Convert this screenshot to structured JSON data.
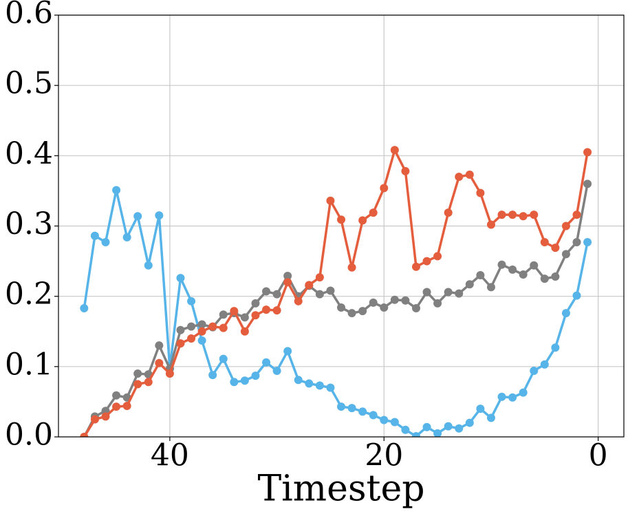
{
  "chart_data": {
    "type": "line",
    "x_label": "Timestep",
    "x": [
      48,
      47,
      46,
      45,
      44,
      43,
      42,
      41,
      40,
      39,
      38,
      37,
      36,
      35,
      34,
      33,
      32,
      31,
      30,
      29,
      28,
      27,
      26,
      25,
      24,
      23,
      22,
      21,
      20,
      19,
      18,
      17,
      16,
      15,
      14,
      13,
      12,
      11,
      10,
      9,
      8,
      7,
      6,
      5,
      4,
      3,
      2,
      1
    ],
    "series": [
      {
        "color": "#56b4e9",
        "values": [
          0.183,
          0.286,
          0.277,
          0.351,
          0.284,
          0.314,
          0.244,
          0.315,
          0.097,
          0.226,
          0.193,
          0.137,
          0.088,
          0.111,
          0.078,
          0.08,
          0.087,
          0.106,
          0.094,
          0.122,
          0.081,
          0.076,
          0.073,
          0.07,
          0.043,
          0.041,
          0.036,
          0.031,
          0.024,
          0.021,
          0.01,
          0.001,
          0.014,
          0.005,
          0.015,
          0.012,
          0.02,
          0.04,
          0.027,
          0.057,
          0.056,
          0.063,
          0.094,
          0.103,
          0.127,
          0.176,
          0.201,
          0.277
        ]
      },
      {
        "color": "#808080",
        "values": [
          0.0,
          0.029,
          0.037,
          0.059,
          0.056,
          0.09,
          0.089,
          0.13,
          0.097,
          0.152,
          0.157,
          0.16,
          0.156,
          0.174,
          0.176,
          0.17,
          0.19,
          0.207,
          0.203,
          0.229,
          0.2,
          0.215,
          0.203,
          0.208,
          0.184,
          0.176,
          0.179,
          0.191,
          0.184,
          0.195,
          0.194,
          0.183,
          0.206,
          0.19,
          0.206,
          0.204,
          0.217,
          0.23,
          0.213,
          0.245,
          0.238,
          0.231,
          0.244,
          0.225,
          0.228,
          0.26,
          0.277,
          0.36
        ]
      },
      {
        "color": "#e45d3d",
        "values": [
          0.0,
          0.025,
          0.029,
          0.043,
          0.044,
          0.075,
          0.078,
          0.105,
          0.09,
          0.133,
          0.14,
          0.15,
          0.157,
          0.155,
          0.179,
          0.15,
          0.173,
          0.181,
          0.18,
          0.22,
          0.193,
          0.216,
          0.227,
          0.336,
          0.309,
          0.241,
          0.308,
          0.319,
          0.354,
          0.408,
          0.378,
          0.242,
          0.25,
          0.257,
          0.319,
          0.37,
          0.373,
          0.347,
          0.302,
          0.316,
          0.316,
          0.314,
          0.316,
          0.277,
          0.269,
          0.3,
          0.316,
          0.405
        ]
      }
    ],
    "xlim": [
      50.4,
      -2.4
    ],
    "xticks": [
      40,
      20,
      0
    ],
    "ylim": [
      0,
      0.6
    ],
    "yticks": [
      {
        "value": 0,
        "label": "0.0"
      },
      0.1,
      0.2,
      0.3,
      0.4,
      0.5,
      0.6
    ],
    "grid": true
  }
}
